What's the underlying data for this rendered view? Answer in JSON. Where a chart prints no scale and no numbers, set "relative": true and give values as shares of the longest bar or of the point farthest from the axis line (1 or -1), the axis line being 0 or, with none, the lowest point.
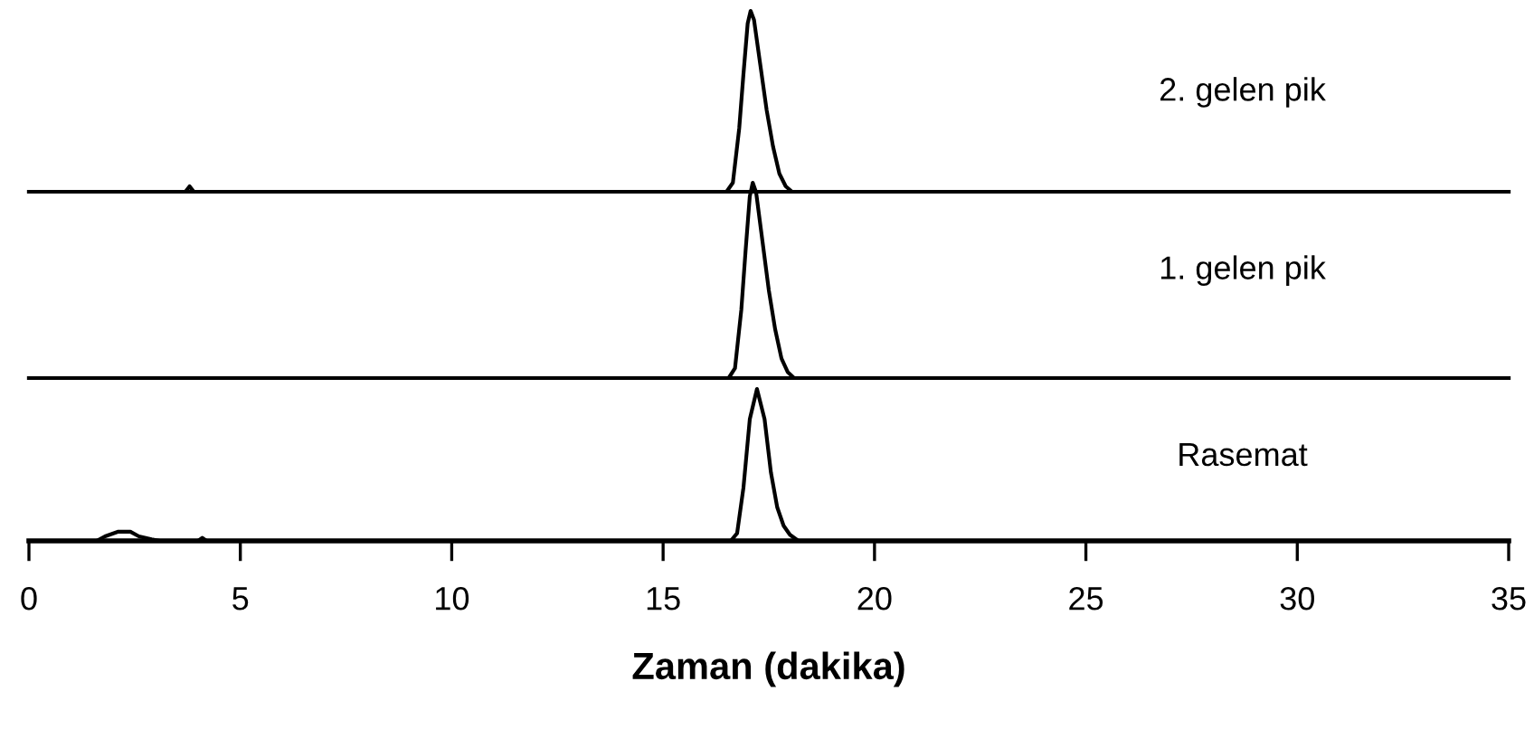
{
  "chart_data": [
    {
      "type": "line",
      "relative": true,
      "xlim": [
        0,
        35
      ],
      "tick_labels": false,
      "series": [
        {
          "name": "2. gelen pik",
          "color": "#000000",
          "x": [
            0,
            3.7,
            3.8,
            3.9,
            16.5,
            16.65,
            16.8,
            16.9,
            17.0,
            17.07,
            17.15,
            17.3,
            17.45,
            17.6,
            17.75,
            17.9,
            18.05,
            35
          ],
          "values": [
            0,
            0,
            0.03,
            0,
            0,
            0.05,
            0.35,
            0.65,
            0.93,
            1,
            0.95,
            0.7,
            0.45,
            0.25,
            0.1,
            0.03,
            0,
            0
          ]
        }
      ]
    },
    {
      "type": "line",
      "relative": true,
      "xlim": [
        0,
        35
      ],
      "tick_labels": false,
      "series": [
        {
          "name": "1. gelen pik",
          "color": "#000000",
          "x": [
            0,
            16.55,
            16.7,
            16.85,
            16.95,
            17.05,
            17.12,
            17.2,
            17.35,
            17.5,
            17.65,
            17.8,
            17.95,
            18.1,
            35
          ],
          "values": [
            0,
            0,
            0.05,
            0.35,
            0.65,
            0.93,
            1,
            0.95,
            0.7,
            0.45,
            0.25,
            0.1,
            0.03,
            0,
            0
          ]
        }
      ]
    },
    {
      "type": "line",
      "relative": true,
      "xlim": [
        0,
        35
      ],
      "xticks": [
        0,
        5,
        10,
        15,
        20,
        25,
        30,
        35
      ],
      "tick_labels": "x",
      "xlabel": "Zaman (dakika)",
      "series": [
        {
          "name": "Rasemat",
          "color": "#000000",
          "x": [
            0,
            1.6,
            1.8,
            2.1,
            2.4,
            2.6,
            2.9,
            3.1,
            4.0,
            4.1,
            4.2,
            16.6,
            16.75,
            16.9,
            17.05,
            17.22,
            17.4,
            17.55,
            17.7,
            17.85,
            18.0,
            18.2,
            35
          ],
          "values": [
            0,
            0,
            0.03,
            0.06,
            0.06,
            0.03,
            0.01,
            0,
            0,
            0.02,
            0,
            0,
            0.05,
            0.35,
            0.8,
            1,
            0.8,
            0.45,
            0.22,
            0.1,
            0.04,
            0,
            0
          ]
        }
      ]
    }
  ]
}
